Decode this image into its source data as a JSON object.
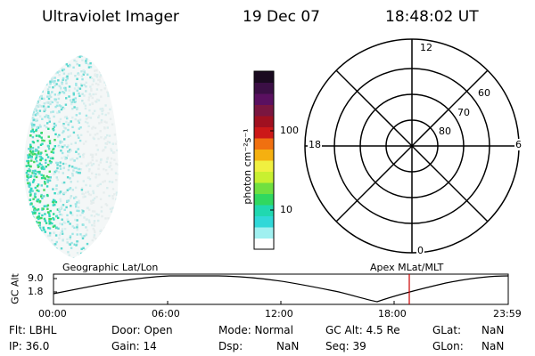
{
  "header": {
    "instrument": "Ultraviolet Imager",
    "date": "19 Dec 07",
    "time": "18:48:02 UT"
  },
  "colorbar": {
    "unit_label": "photon cm⁻²s⁻¹",
    "ticks": [
      "100",
      "10"
    ],
    "colors": [
      "#1a0a20",
      "#3b0f45",
      "#5a1060",
      "#7a1640",
      "#a01020",
      "#cc1818",
      "#f07010",
      "#f5b010",
      "#f0f040",
      "#c8f030",
      "#70e040",
      "#30d860",
      "#20d8b0",
      "#30d8d8",
      "#a0f0f0",
      "#ffffff"
    ]
  },
  "polar_plot": {
    "mlt_labels": {
      "top": "12",
      "left": "18",
      "right": "6",
      "bottom": "0"
    },
    "lat_labels": [
      "60",
      "70",
      "80"
    ]
  },
  "orbit_plot": {
    "y_axis_label": "GC Alt",
    "y_ticks": [
      "9.0",
      "1.8"
    ],
    "left_title": "Geographic Lat/Lon",
    "right_title": "Apex MLat/MLT",
    "x_ticks": [
      "00:00",
      "06:00",
      "12:00",
      "18:00",
      "23:59"
    ],
    "marker_color": "#cc0000"
  },
  "info": {
    "flt": "Flt: LBHL",
    "ip": "IP: 36.0",
    "door": "Door: Open",
    "gain": "Gain: 14",
    "mode": "Mode: Normal",
    "dsp_label": "Dsp:",
    "dsp_value": "NaN",
    "gcalt": "GC Alt: 4.5 Re",
    "seq": "Seq: 39",
    "glat_label": "GLat:",
    "glat_value": "NaN",
    "glon_label": "GLon:",
    "glon_value": "NaN"
  }
}
